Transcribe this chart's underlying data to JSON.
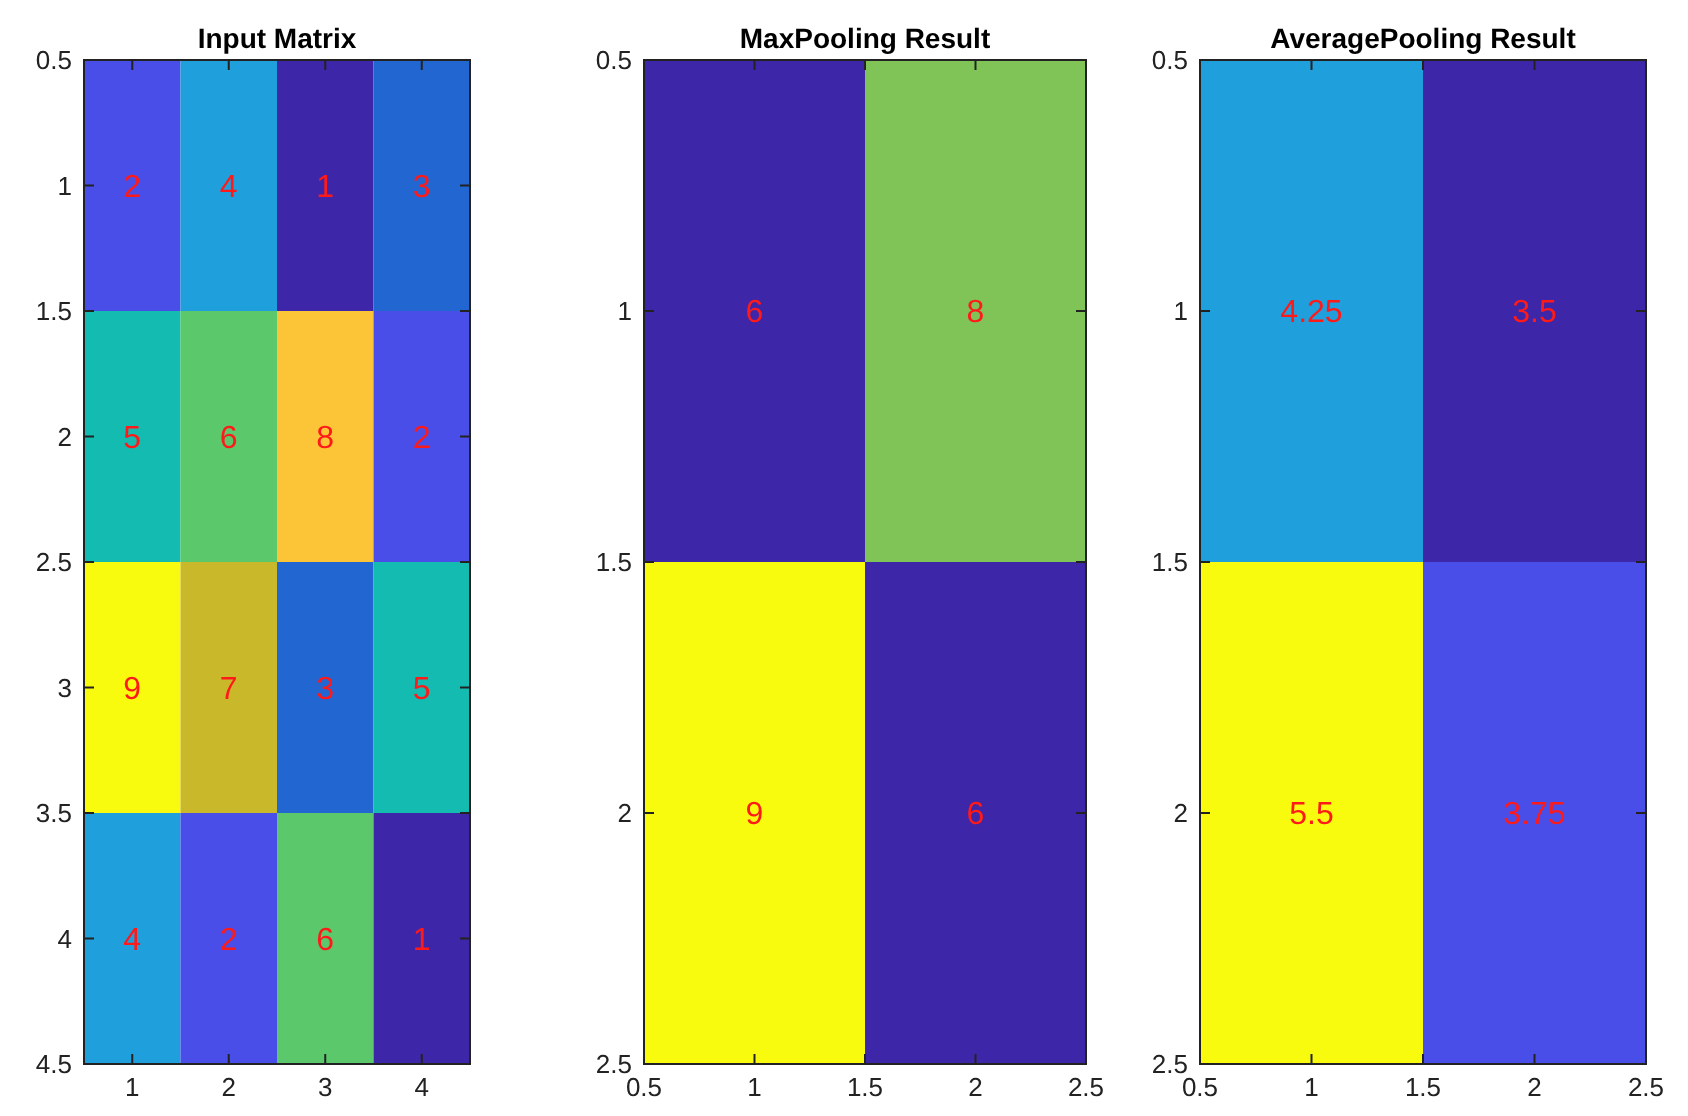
{
  "chart_data": [
    {
      "type": "heatmap",
      "title": "Input Matrix",
      "cells": [
        [
          2,
          4,
          1,
          3
        ],
        [
          5,
          6,
          8,
          2
        ],
        [
          9,
          7,
          3,
          5
        ],
        [
          4,
          2,
          6,
          1
        ]
      ],
      "xlim": [
        0.5,
        4.5
      ],
      "xticks": [
        1,
        2,
        3,
        4
      ],
      "ylim": [
        4.5,
        0.5
      ],
      "yticks": [
        0.5,
        1,
        1.5,
        2,
        2.5,
        3,
        3.5,
        4,
        4.5
      ],
      "data_labels": true
    },
    {
      "type": "heatmap",
      "title": "MaxPooling Result",
      "cells": [
        [
          6,
          8
        ],
        [
          9,
          6
        ]
      ],
      "xlim": [
        0.5,
        2.5
      ],
      "xticks": [
        0.5,
        1,
        1.5,
        2,
        2.5
      ],
      "ylim": [
        2.5,
        0.5
      ],
      "yticks": [
        0.5,
        1,
        1.5,
        2,
        2.5
      ],
      "data_labels": true
    },
    {
      "type": "heatmap",
      "title": "AveragePooling Result",
      "cells": [
        [
          4.25,
          3.5
        ],
        [
          5.5,
          3.75
        ]
      ],
      "xlim": [
        0.5,
        2.5
      ],
      "xticks": [
        0.5,
        1,
        1.5,
        2,
        2.5
      ],
      "ylim": [
        2.5,
        0.5
      ],
      "yticks": [
        0.5,
        1,
        1.5,
        2,
        2.5
      ],
      "data_labels": true
    }
  ]
}
